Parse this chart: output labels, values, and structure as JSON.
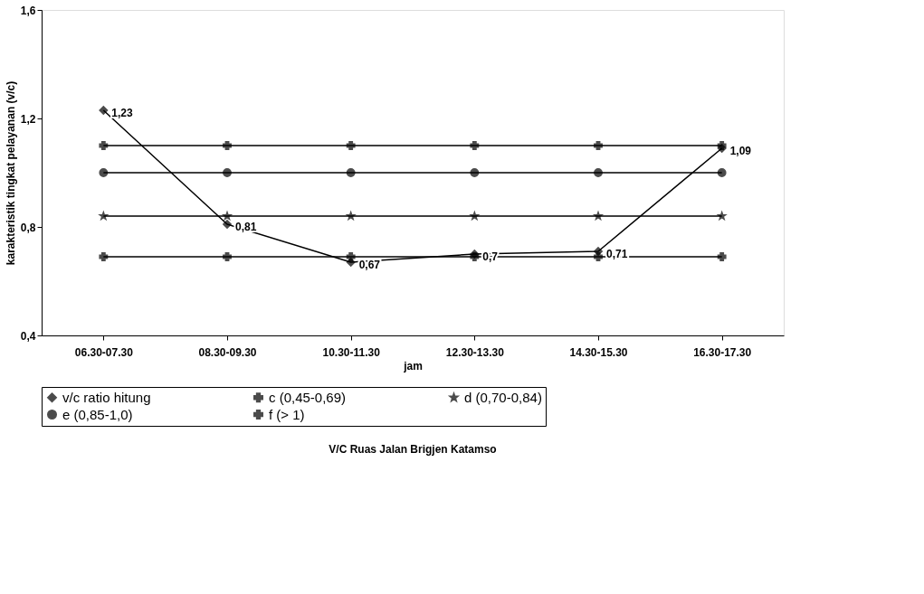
{
  "chart_data": {
    "type": "line",
    "title": "V/C Ruas Jalan Brigjen Katamso",
    "xlabel": "jam",
    "ylabel": "karakteristik tingkat pelayanan (v/c)",
    "categories": [
      "06.30-07.30",
      "08.30-09.30",
      "10.30-11.30",
      "12.30-13.30",
      "14.30-15.30",
      "16.30-17.30"
    ],
    "series": [
      {
        "name": "v/c ratio hitung",
        "color": "#000000",
        "marker": "diamond",
        "values": [
          1.23,
          0.81,
          0.67,
          0.7,
          0.71,
          1.09
        ],
        "value_labels": [
          "1,23",
          "0,81",
          "0,67",
          "0,7",
          "0,71",
          "1,09"
        ]
      },
      {
        "name": "c (0,45-0,69)",
        "color": "#000000",
        "marker": "cross",
        "values": [
          0.69,
          0.69,
          0.69,
          0.69,
          0.69,
          0.69
        ]
      },
      {
        "name": "d (0,70-0,84)",
        "color": "#000000",
        "marker": "star",
        "values": [
          0.84,
          0.84,
          0.84,
          0.84,
          0.84,
          0.84
        ]
      },
      {
        "name": "e (0,85-1,0)",
        "color": "#000000",
        "marker": "circle",
        "values": [
          1.0,
          1.0,
          1.0,
          1.0,
          1.0,
          1.0
        ]
      },
      {
        "name": "f (> 1)",
        "color": "#000000",
        "marker": "cross",
        "values": [
          1.1,
          1.1,
          1.1,
          1.1,
          1.1,
          1.1
        ]
      }
    ],
    "ylim": [
      0.4,
      1.6
    ],
    "yticks": [
      {
        "value": 0.4,
        "label": "0,4"
      },
      {
        "value": 0.8,
        "label": "0,8"
      },
      {
        "value": 1.2,
        "label": "1,2"
      },
      {
        "value": 1.6,
        "label": "1,6"
      }
    ],
    "grid": false,
    "legend": "bottom",
    "line_style": "solid"
  }
}
